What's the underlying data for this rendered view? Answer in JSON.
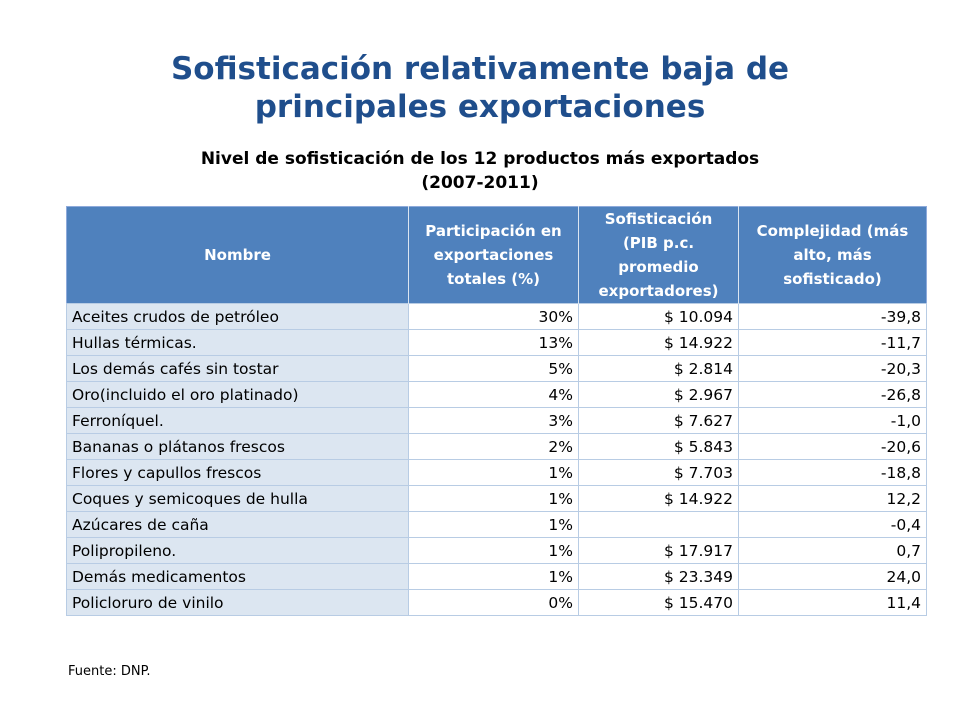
{
  "title_line1": "Sofisticación relativamente baja de",
  "title_line2": "principales exportaciones",
  "subtitle_line1": "Nivel de sofisticación de los 12 productos más exportados",
  "subtitle_line2": "(2007-2011)",
  "table": {
    "headers": [
      "Nombre",
      "Participación en exportaciones totales (%)",
      "Sofisticación (PIB p.c. promedio exportadores)",
      "Complejidad (más alto, más sofisticado)"
    ],
    "rows": [
      [
        "Aceites crudos de petróleo",
        "30%",
        "$ 10.094",
        "-39,8"
      ],
      [
        "Hullas térmicas.",
        "13%",
        "$ 14.922",
        "-11,7"
      ],
      [
        "Los demás cafés sin tostar",
        "5%",
        "$ 2.814",
        "-20,3"
      ],
      [
        "Oro(incluido el oro platinado)",
        "4%",
        "$ 2.967",
        "-26,8"
      ],
      [
        "Ferroníquel.",
        "3%",
        "$ 7.627",
        "-1,0"
      ],
      [
        "Bananas o plátanos frescos",
        "2%",
        "$ 5.843",
        "-20,6"
      ],
      [
        "Flores y capullos frescos",
        "1%",
        "$ 7.703",
        "-18,8"
      ],
      [
        "Coques y semicoques de hulla",
        "1%",
        "$ 14.922",
        "12,2"
      ],
      [
        "Azúcares de caña",
        "1%",
        "",
        "-0,4"
      ],
      [
        "Polipropileno.",
        "1%",
        "$ 17.917",
        "0,7"
      ],
      [
        "Demás medicamentos",
        "1%",
        "$ 23.349",
        "24,0"
      ],
      [
        "Policloruro de vinilo",
        "0%",
        "$ 15.470",
        "11,4"
      ]
    ]
  },
  "source": "Fuente: DNP."
}
